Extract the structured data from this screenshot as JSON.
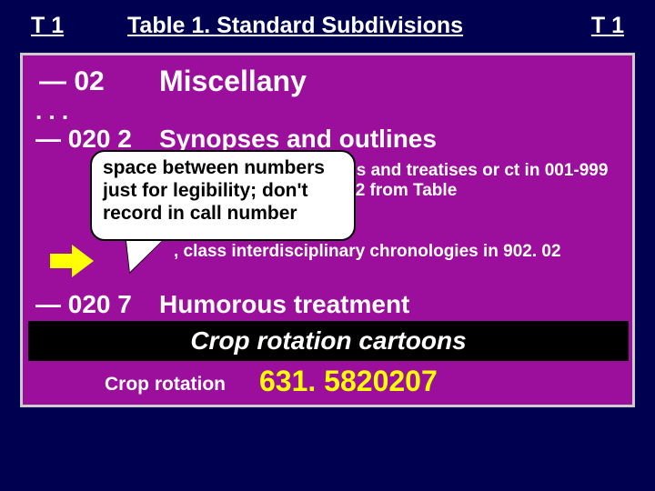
{
  "header": {
    "left": "T 1",
    "center": "Table 1. Standard Subdivisions",
    "right": "T 1"
  },
  "rows": {
    "r02": {
      "code": "— 02",
      "label": "Miscellany"
    },
    "ellipsis": ". . .",
    "r0202": {
      "code": "— 020 2",
      "label": "Synopses and outlines"
    },
    "note_right": "pses and\ntreatises or\nct in 001-999\n0202 from Table",
    "note_line2": ", class interdisciplinary chronologies in 902. 02",
    "r0207": {
      "code": "— 020 7",
      "label": "Humorous treatment"
    }
  },
  "callout": {
    "text": "space between numbers just for legibility; don't record in call number"
  },
  "blackbox": "Crop rotation cartoons",
  "footer": {
    "label": "Crop rotation",
    "number": "631. 5820207"
  },
  "colors": {
    "bg": "#000050",
    "panel": "#9c0e9c",
    "panel_border": "#cccccc",
    "text": "#ffffff",
    "highlight": "#ffff00",
    "callout_bg": "#ffffff",
    "callout_border": "#000000"
  }
}
